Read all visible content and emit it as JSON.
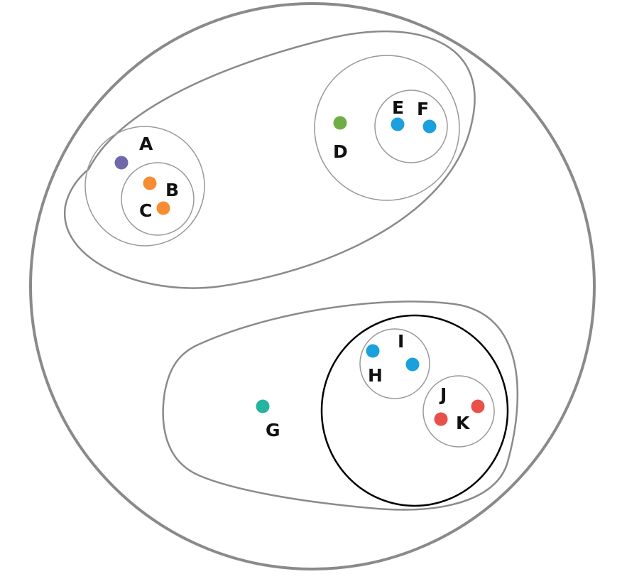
{
  "colors": {
    "outline_gray": "#8a8a8a",
    "outline_black": "#000000",
    "A": "#6e6aaa",
    "B": "#f68d32",
    "C": "#f68d32",
    "D": "#6fad47",
    "E": "#1aa0dc",
    "F": "#1aa0dc",
    "G": "#26b3a0",
    "H": "#1aa0dc",
    "I": "#1aa0dc",
    "J": "#e8504a",
    "K": "#e8504a"
  },
  "labels": {
    "A": "A",
    "B": "B",
    "C": "C",
    "D": "D",
    "E": "E",
    "F": "F",
    "G": "G",
    "H": "H",
    "I": "I",
    "J": "J",
    "K": "K"
  }
}
